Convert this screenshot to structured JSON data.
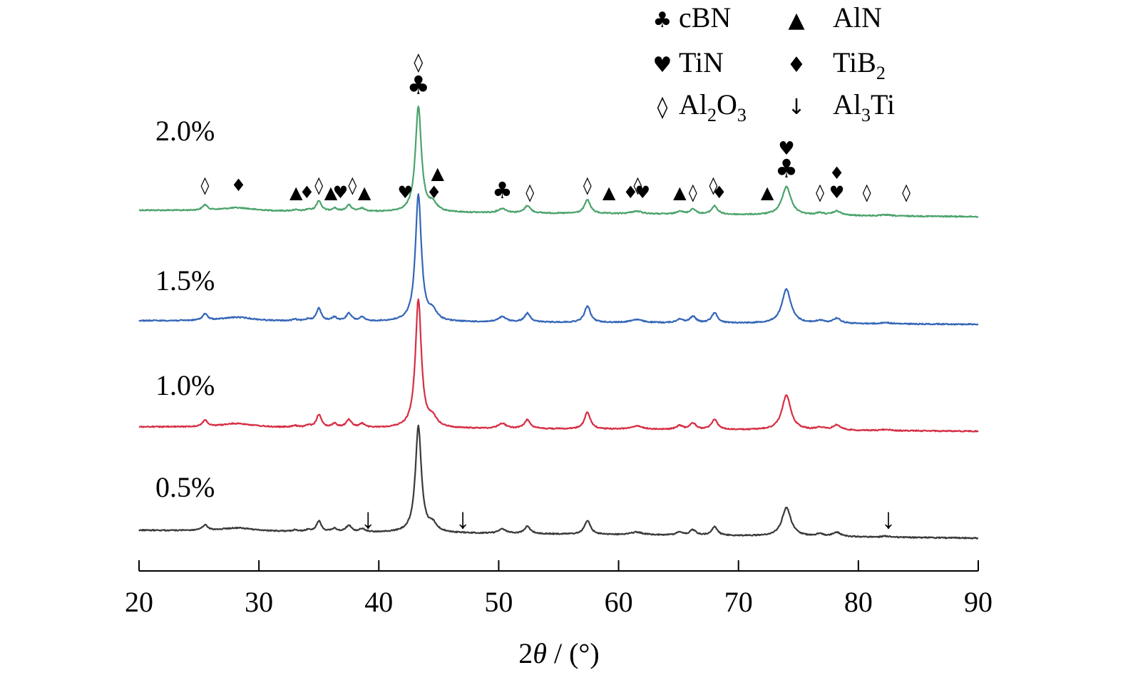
{
  "chart_data": {
    "type": "line",
    "xlabel_prefix": "2",
    "xlabel_theta": "θ",
    "xlabel_suffix": " / (°)",
    "xlim": [
      20,
      90
    ],
    "xticks": [
      "20",
      "30",
      "40",
      "50",
      "60",
      "70",
      "80",
      "90"
    ],
    "grid": false,
    "legend_position": "top-right",
    "legend": [
      {
        "symbol": "♣",
        "name": "cBN",
        "sub": "",
        "tail": ""
      },
      {
        "symbol": "▲",
        "name": "AlN",
        "sub": "",
        "tail": ""
      },
      {
        "symbol": "♥",
        "name": "TiN",
        "sub": "",
        "tail": ""
      },
      {
        "symbol": "♦",
        "name": "TiB",
        "sub": "2",
        "tail": ""
      },
      {
        "symbol": "◊",
        "name": "Al",
        "sub": "2",
        "tail": "O",
        "sub2": "3"
      },
      {
        "symbol": "↓",
        "name": "Al",
        "sub": "3",
        "tail": "Ti"
      }
    ],
    "series": [
      {
        "name": "2.0%",
        "color": "#4aa36b"
      },
      {
        "name": "1.5%",
        "color": "#3466b8"
      },
      {
        "name": "1.0%",
        "color": "#d62e44"
      },
      {
        "name": "0.5%",
        "color": "#3a3a3a"
      }
    ],
    "peaks": [
      {
        "x": 25.5,
        "h": 0.05,
        "w": 0.25
      },
      {
        "x": 28.2,
        "h": 0.03,
        "w": 1.6
      },
      {
        "x": 33.0,
        "h": 0.012,
        "w": 0.25
      },
      {
        "x": 34.1,
        "h": 0.015,
        "w": 0.25
      },
      {
        "x": 35.0,
        "h": 0.1,
        "w": 0.25
      },
      {
        "x": 36.3,
        "h": 0.03,
        "w": 0.25
      },
      {
        "x": 37.5,
        "h": 0.06,
        "w": 0.28
      },
      {
        "x": 38.6,
        "h": 0.03,
        "w": 0.25
      },
      {
        "x": 43.3,
        "h": 1.0,
        "w": 0.3
      },
      {
        "x": 44.5,
        "h": 0.07,
        "w": 0.4
      },
      {
        "x": 50.3,
        "h": 0.04,
        "w": 0.4
      },
      {
        "x": 52.4,
        "h": 0.07,
        "w": 0.3
      },
      {
        "x": 57.4,
        "h": 0.13,
        "w": 0.3
      },
      {
        "x": 61.5,
        "h": 0.025,
        "w": 0.6
      },
      {
        "x": 65.1,
        "h": 0.03,
        "w": 0.3
      },
      {
        "x": 66.2,
        "h": 0.05,
        "w": 0.3
      },
      {
        "x": 68.0,
        "h": 0.08,
        "w": 0.3
      },
      {
        "x": 74.0,
        "h": 0.27,
        "w": 0.45
      },
      {
        "x": 76.8,
        "h": 0.02,
        "w": 0.4
      },
      {
        "x": 78.2,
        "h": 0.04,
        "w": 0.4
      },
      {
        "x": 82.3,
        "h": 0.01,
        "w": 0.4
      }
    ],
    "markers_2p0": [
      {
        "x": 25.5,
        "row": 0,
        "s": "◊"
      },
      {
        "x": 28.3,
        "row": 0,
        "s": "♦"
      },
      {
        "x": 33.1,
        "row": 1,
        "s": "▲"
      },
      {
        "x": 34.0,
        "row": 1,
        "s": "♦"
      },
      {
        "x": 35.0,
        "row": 0,
        "s": "◊"
      },
      {
        "x": 36.0,
        "row": 1,
        "s": "▲"
      },
      {
        "x": 36.8,
        "row": 1,
        "s": "♥"
      },
      {
        "x": 37.8,
        "row": 0,
        "s": "◊"
      },
      {
        "x": 38.8,
        "row": 1,
        "s": "▲"
      },
      {
        "x": 42.2,
        "row": 1,
        "s": "♥"
      },
      {
        "x": 43.3,
        "row": 4,
        "s": "♣"
      },
      {
        "x": 43.3,
        "row": 5,
        "s": "◊"
      },
      {
        "x": 44.9,
        "row": 2,
        "s": "▲"
      },
      {
        "x": 44.6,
        "row": 1,
        "s": "♦"
      },
      {
        "x": 50.3,
        "row": 1,
        "s": "♣"
      },
      {
        "x": 52.6,
        "row": 1,
        "s": "◊"
      },
      {
        "x": 57.4,
        "row": 0,
        "s": "◊"
      },
      {
        "x": 59.2,
        "row": 1,
        "s": "▲"
      },
      {
        "x": 61.0,
        "row": 1,
        "s": "♦"
      },
      {
        "x": 61.6,
        "row": 0,
        "s": "◊"
      },
      {
        "x": 62.0,
        "row": 1,
        "s": "♥"
      },
      {
        "x": 65.1,
        "row": 1,
        "s": "▲"
      },
      {
        "x": 66.2,
        "row": 1,
        "s": "◊"
      },
      {
        "x": 67.9,
        "row": 0,
        "s": "◊"
      },
      {
        "x": 68.4,
        "row": 1,
        "s": "♦"
      },
      {
        "x": 72.4,
        "row": 1,
        "s": "▲"
      },
      {
        "x": 74.0,
        "row": 4,
        "s": "♣"
      },
      {
        "x": 74.0,
        "row": 5,
        "s": "♥"
      },
      {
        "x": 76.8,
        "row": 1,
        "s": "◊"
      },
      {
        "x": 78.2,
        "row": 1,
        "s": "♥"
      },
      {
        "x": 78.2,
        "row": 2,
        "s": "♦"
      },
      {
        "x": 80.7,
        "row": 1,
        "s": "◊"
      },
      {
        "x": 84.0,
        "row": 1,
        "s": "◊"
      }
    ],
    "markers_0p5": [
      {
        "x": 39.1,
        "s": "↓"
      },
      {
        "x": 47.0,
        "s": "↓"
      },
      {
        "x": 82.5,
        "s": "↓"
      }
    ]
  }
}
